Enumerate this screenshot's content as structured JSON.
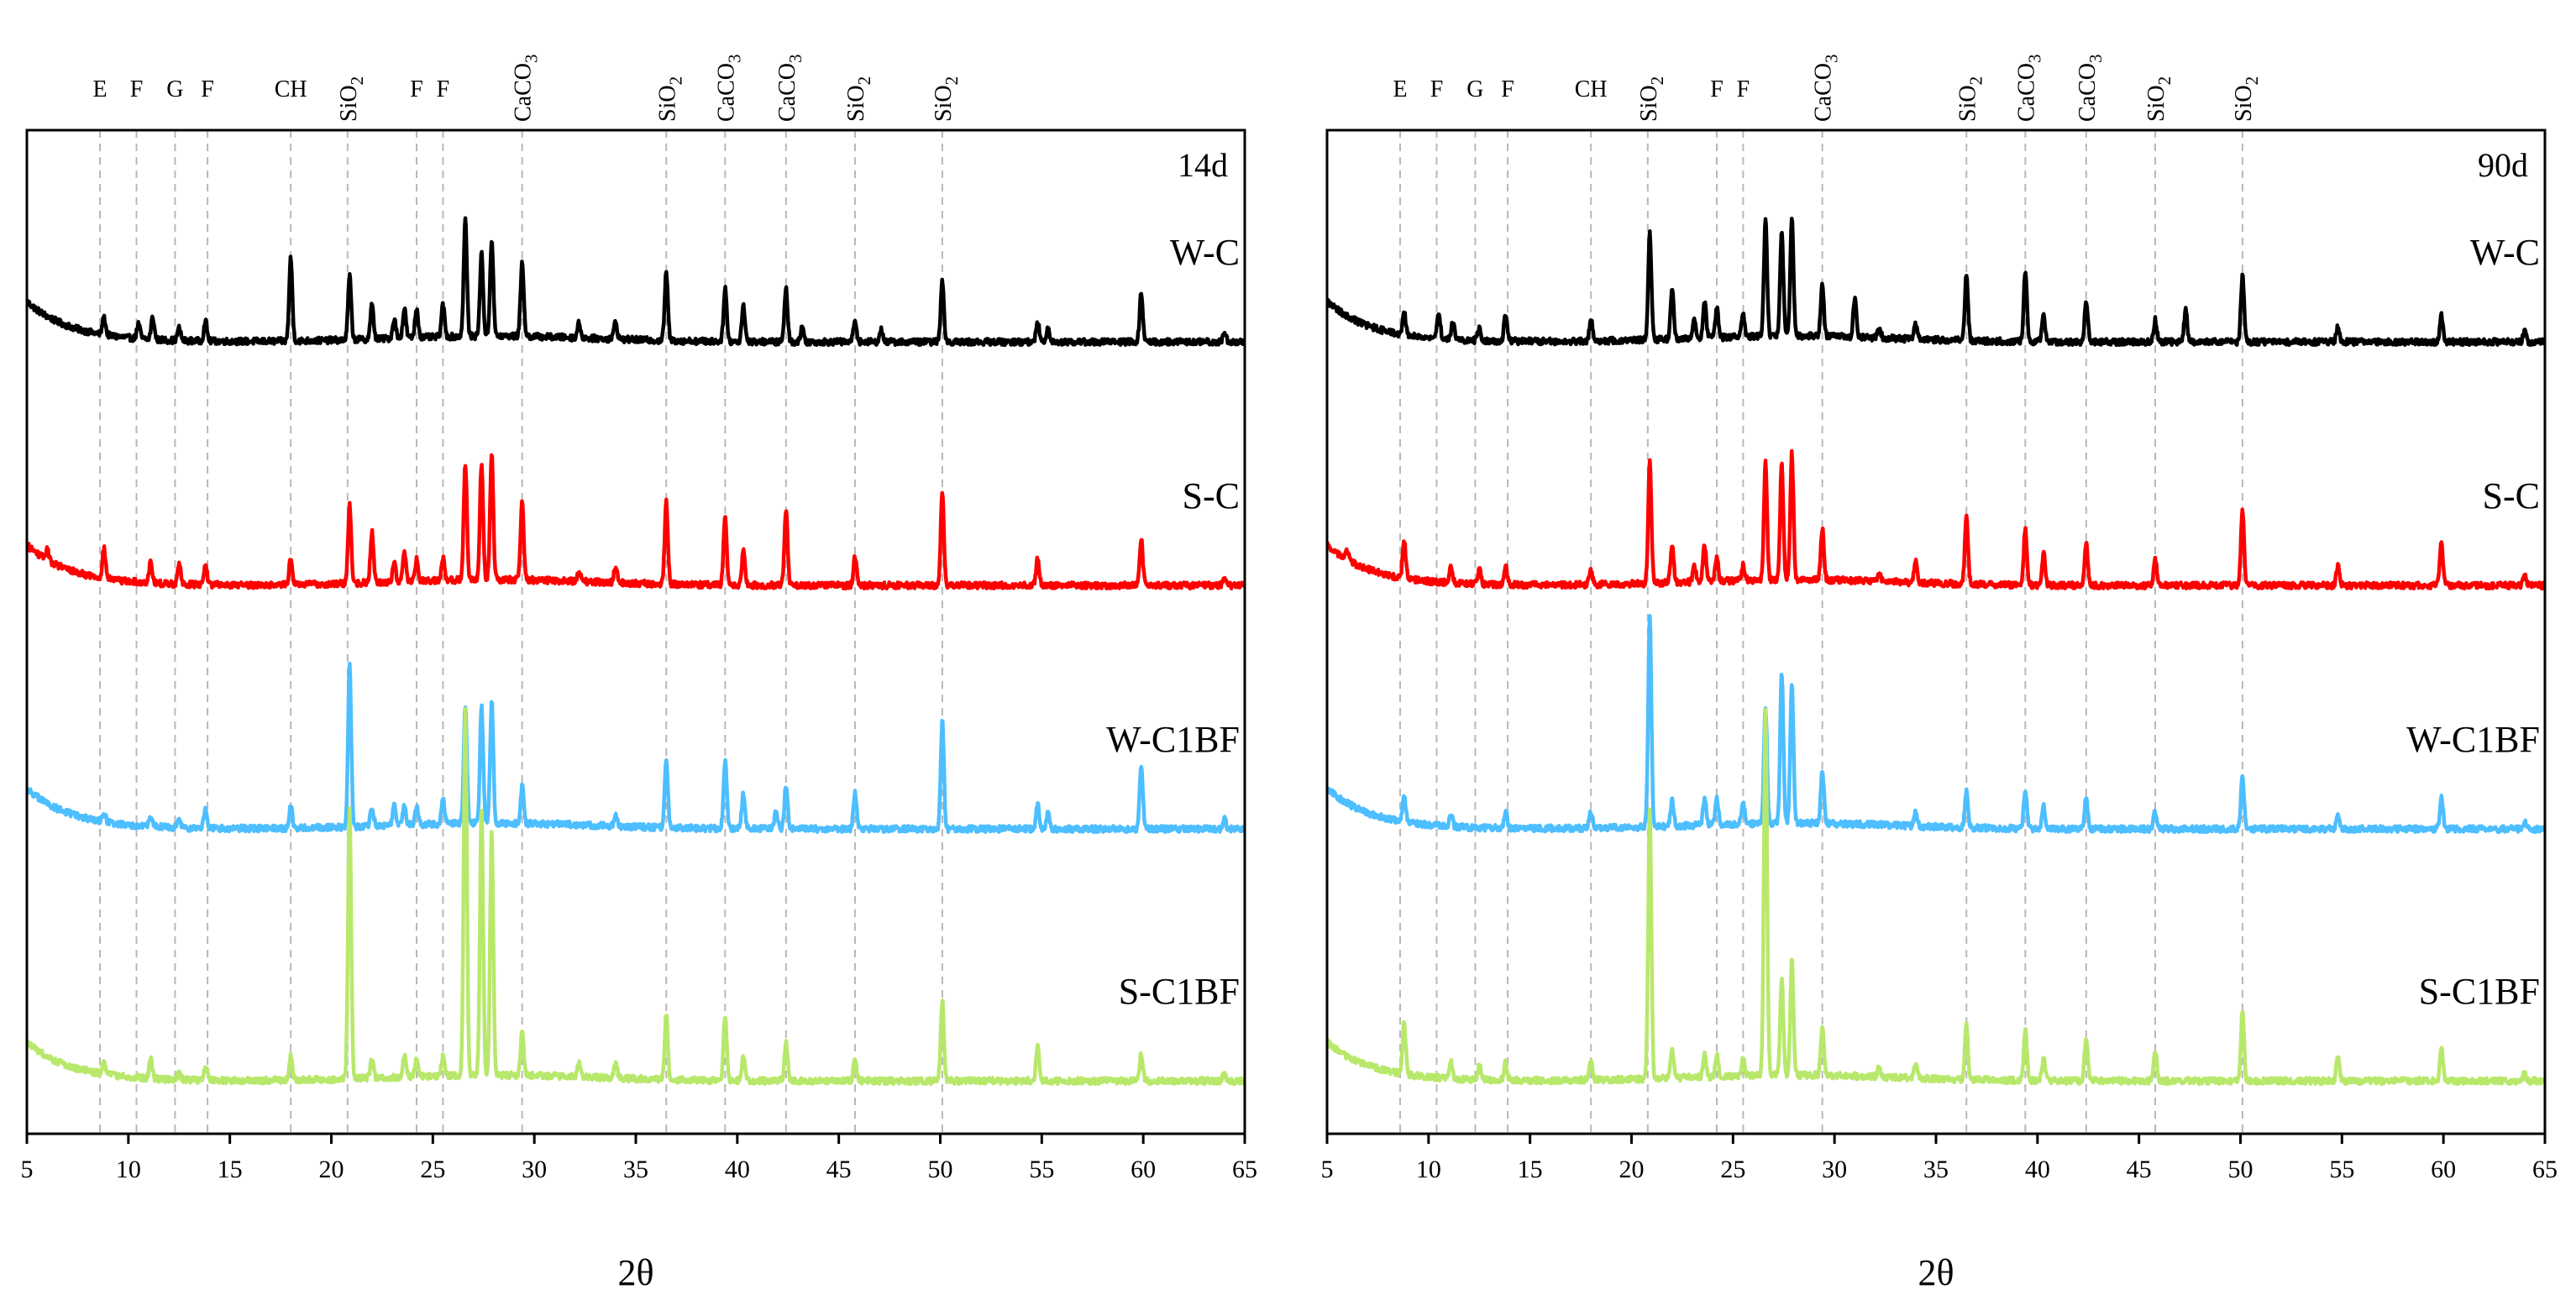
{
  "chart_data": [
    {
      "type": "line",
      "panel_label": "14d",
      "xlabel": "2θ",
      "xlim": [
        5,
        65
      ],
      "xticks": [
        5,
        10,
        15,
        20,
        25,
        30,
        35,
        40,
        45,
        50,
        55,
        60,
        65
      ],
      "phase_markers": [
        {
          "label": "E",
          "x": 8.6
        },
        {
          "label": "F",
          "x": 10.4
        },
        {
          "label": "G",
          "x": 12.3
        },
        {
          "label": "F",
          "x": 13.9
        },
        {
          "label": "CH",
          "x": 18.0
        },
        {
          "label": "SiO",
          "sub": "2",
          "x": 20.8
        },
        {
          "label": "F",
          "x": 24.2
        },
        {
          "label": "F",
          "x": 25.5
        },
        {
          "label": "CaCO",
          "sub": "3",
          "x": 29.4
        },
        {
          "label": "SiO",
          "sub": "2",
          "x": 36.5
        },
        {
          "label": "CaCO",
          "sub": "3",
          "x": 39.4
        },
        {
          "label": "CaCO",
          "sub": "3",
          "x": 42.4
        },
        {
          "label": "SiO",
          "sub": "2",
          "x": 45.8
        },
        {
          "label": "SiO",
          "sub": "2",
          "x": 50.1
        }
      ],
      "series": [
        {
          "name": "W-C",
          "color": "#000000",
          "offset": 3,
          "base": 0.92,
          "peaks": [
            [
              8.8,
              0.35
            ],
            [
              10.5,
              0.3
            ],
            [
              11.2,
              0.45
            ],
            [
              12.5,
              0.25
            ],
            [
              13.8,
              0.4
            ],
            [
              18.0,
              1.7
            ],
            [
              20.9,
              1.3
            ],
            [
              22.0,
              0.7
            ],
            [
              23.1,
              0.4
            ],
            [
              23.6,
              0.6
            ],
            [
              24.2,
              0.6
            ],
            [
              25.5,
              0.65
            ],
            [
              26.6,
              2.4
            ],
            [
              27.4,
              1.7
            ],
            [
              27.9,
              2.0
            ],
            [
              29.4,
              1.55
            ],
            [
              32.2,
              0.3
            ],
            [
              34.0,
              0.35
            ],
            [
              36.5,
              1.4
            ],
            [
              39.4,
              1.1
            ],
            [
              40.3,
              0.75
            ],
            [
              42.4,
              1.1
            ],
            [
              43.2,
              0.3
            ],
            [
              45.8,
              0.45
            ],
            [
              47.1,
              0.25
            ],
            [
              50.1,
              1.25
            ],
            [
              54.8,
              0.4
            ],
            [
              55.3,
              0.3
            ],
            [
              59.9,
              1.0
            ],
            [
              64.0,
              0.2
            ]
          ]
        },
        {
          "name": "S-C",
          "color": "#ff0000",
          "offset": 2,
          "base": 0.92,
          "peaks": [
            [
              6.0,
              0.2
            ],
            [
              8.8,
              0.6
            ],
            [
              11.1,
              0.45
            ],
            [
              12.5,
              0.4
            ],
            [
              13.8,
              0.4
            ],
            [
              18.0,
              0.55
            ],
            [
              20.9,
              1.6
            ],
            [
              22.0,
              1.05
            ],
            [
              23.1,
              0.4
            ],
            [
              23.6,
              0.6
            ],
            [
              24.2,
              0.45
            ],
            [
              25.5,
              0.45
            ],
            [
              26.6,
              2.4
            ],
            [
              27.4,
              2.4
            ],
            [
              27.9,
              2.6
            ],
            [
              29.4,
              1.6
            ],
            [
              32.2,
              0.2
            ],
            [
              34.0,
              0.3
            ],
            [
              36.5,
              1.7
            ],
            [
              39.4,
              1.45
            ],
            [
              40.3,
              0.7
            ],
            [
              42.4,
              1.55
            ],
            [
              45.8,
              0.6
            ],
            [
              50.1,
              1.9
            ],
            [
              54.8,
              0.55
            ],
            [
              59.9,
              0.95
            ],
            [
              64.0,
              0.2
            ]
          ]
        },
        {
          "name": "W-C1BF",
          "color": "#4dbeff",
          "offset": 1,
          "base": 0.92,
          "peaks": [
            [
              8.8,
              0.2
            ],
            [
              11.1,
              0.2
            ],
            [
              12.5,
              0.15
            ],
            [
              13.8,
              0.4
            ],
            [
              18.0,
              0.45
            ],
            [
              20.9,
              3.3
            ],
            [
              22.0,
              0.4
            ],
            [
              23.1,
              0.4
            ],
            [
              23.6,
              0.4
            ],
            [
              24.2,
              0.35
            ],
            [
              25.5,
              0.5
            ],
            [
              26.6,
              2.4
            ],
            [
              27.4,
              2.4
            ],
            [
              27.9,
              2.5
            ],
            [
              29.4,
              0.75
            ],
            [
              34.0,
              0.2
            ],
            [
              36.5,
              1.45
            ],
            [
              39.4,
              1.4
            ],
            [
              40.3,
              0.75
            ],
            [
              41.9,
              0.35
            ],
            [
              42.4,
              0.9
            ],
            [
              45.8,
              0.75
            ],
            [
              50.1,
              2.25
            ],
            [
              54.8,
              0.5
            ],
            [
              55.3,
              0.3
            ],
            [
              59.9,
              1.3
            ],
            [
              64.0,
              0.2
            ]
          ]
        },
        {
          "name": "S-C1BF",
          "color": "#b8e86b",
          "offset": 0,
          "base": 0.88,
          "peaks": [
            [
              8.8,
              0.3
            ],
            [
              11.1,
              0.4
            ],
            [
              12.5,
              0.15
            ],
            [
              13.8,
              0.3
            ],
            [
              18.0,
              0.5
            ],
            [
              20.9,
              5.5
            ],
            [
              22.0,
              0.4
            ],
            [
              23.6,
              0.45
            ],
            [
              24.2,
              0.35
            ],
            [
              25.5,
              0.4
            ],
            [
              26.6,
              7.5
            ],
            [
              27.4,
              5.5
            ],
            [
              27.9,
              5.0
            ],
            [
              29.4,
              0.95
            ],
            [
              32.2,
              0.3
            ],
            [
              34.0,
              0.35
            ],
            [
              36.5,
              1.35
            ],
            [
              39.4,
              1.35
            ],
            [
              40.3,
              0.5
            ],
            [
              42.4,
              0.8
            ],
            [
              45.8,
              0.45
            ],
            [
              50.1,
              1.65
            ],
            [
              54.8,
              0.75
            ],
            [
              59.9,
              0.55
            ],
            [
              64.0,
              0.15
            ]
          ]
        }
      ]
    },
    {
      "type": "line",
      "panel_label": "90d",
      "xlabel": "2θ",
      "xlim": [
        5,
        65
      ],
      "xticks": [
        5,
        10,
        15,
        20,
        25,
        30,
        35,
        40,
        45,
        50,
        55,
        60,
        65
      ],
      "phase_markers": [
        {
          "label": "E",
          "x": 8.6
        },
        {
          "label": "F",
          "x": 10.4
        },
        {
          "label": "G",
          "x": 12.3
        },
        {
          "label": "F",
          "x": 13.9
        },
        {
          "label": "CH",
          "x": 18.0
        },
        {
          "label": "SiO",
          "sub": "2",
          "x": 20.8
        },
        {
          "label": "F",
          "x": 24.2
        },
        {
          "label": "F",
          "x": 25.5
        },
        {
          "label": "CaCO",
          "sub": "3",
          "x": 29.4
        },
        {
          "label": "SiO",
          "sub": "2",
          "x": 36.5
        },
        {
          "label": "CaCO",
          "sub": "3",
          "x": 39.4
        },
        {
          "label": "CaCO",
          "sub": "3",
          "x": 42.4
        },
        {
          "label": "SiO",
          "sub": "2",
          "x": 45.8
        },
        {
          "label": "SiO",
          "sub": "2",
          "x": 50.1
        }
      ],
      "series": [
        {
          "name": "W-C",
          "color": "#000000",
          "offset": 3,
          "base": 0.92,
          "peaks": [
            [
              8.8,
              0.45
            ],
            [
              10.5,
              0.55
            ],
            [
              11.2,
              0.35
            ],
            [
              12.5,
              0.25
            ],
            [
              13.8,
              0.55
            ],
            [
              18.0,
              0.45
            ],
            [
              20.9,
              2.2
            ],
            [
              22.0,
              1.05
            ],
            [
              23.1,
              0.4
            ],
            [
              23.6,
              0.75
            ],
            [
              24.2,
              0.6
            ],
            [
              25.5,
              0.45
            ],
            [
              26.6,
              2.4
            ],
            [
              27.4,
              2.2
            ],
            [
              27.9,
              2.4
            ],
            [
              29.4,
              1.05
            ],
            [
              31.0,
              0.8
            ],
            [
              32.2,
              0.2
            ],
            [
              34.0,
              0.3
            ],
            [
              36.5,
              1.35
            ],
            [
              39.4,
              1.45
            ],
            [
              40.3,
              0.55
            ],
            [
              42.4,
              0.85
            ],
            [
              45.8,
              0.45
            ],
            [
              47.3,
              0.65
            ],
            [
              50.1,
              1.35
            ],
            [
              54.8,
              0.3
            ],
            [
              59.9,
              0.55
            ],
            [
              64.0,
              0.2
            ]
          ]
        },
        {
          "name": "S-C",
          "color": "#ff0000",
          "offset": 2,
          "base": 0.92,
          "peaks": [
            [
              6.0,
              0.2
            ],
            [
              8.8,
              0.75
            ],
            [
              11.1,
              0.35
            ],
            [
              12.5,
              0.3
            ],
            [
              13.8,
              0.35
            ],
            [
              18.0,
              0.3
            ],
            [
              20.9,
              2.5
            ],
            [
              22.0,
              0.75
            ],
            [
              23.1,
              0.3
            ],
            [
              23.6,
              0.75
            ],
            [
              24.2,
              0.45
            ],
            [
              25.5,
              0.3
            ],
            [
              26.6,
              2.4
            ],
            [
              27.4,
              2.4
            ],
            [
              27.9,
              2.6
            ],
            [
              29.4,
              1.05
            ],
            [
              32.2,
              0.2
            ],
            [
              34.0,
              0.45
            ],
            [
              36.5,
              1.4
            ],
            [
              39.4,
              1.15
            ],
            [
              40.3,
              0.65
            ],
            [
              42.4,
              0.85
            ],
            [
              45.8,
              0.55
            ],
            [
              50.1,
              1.55
            ],
            [
              54.8,
              0.4
            ],
            [
              59.9,
              0.85
            ],
            [
              64.0,
              0.2
            ]
          ]
        },
        {
          "name": "W-C1BF",
          "color": "#4dbeff",
          "offset": 1,
          "base": 0.92,
          "peaks": [
            [
              8.8,
              0.5
            ],
            [
              11.1,
              0.25
            ],
            [
              13.8,
              0.35
            ],
            [
              18.0,
              0.35
            ],
            [
              20.9,
              4.3
            ],
            [
              22.0,
              0.55
            ],
            [
              23.6,
              0.55
            ],
            [
              24.2,
              0.55
            ],
            [
              25.5,
              0.45
            ],
            [
              26.6,
              2.4
            ],
            [
              27.4,
              3.1
            ],
            [
              27.9,
              2.9
            ],
            [
              29.4,
              1.1
            ],
            [
              34.0,
              0.3
            ],
            [
              36.5,
              0.75
            ],
            [
              39.4,
              0.8
            ],
            [
              40.3,
              0.45
            ],
            [
              42.4,
              0.65
            ],
            [
              45.8,
              0.35
            ],
            [
              50.1,
              1.1
            ],
            [
              54.8,
              0.3
            ],
            [
              59.9,
              0.65
            ],
            [
              64.0,
              0.15
            ]
          ]
        },
        {
          "name": "S-C1BF",
          "color": "#b8e86b",
          "offset": 0,
          "base": 0.88,
          "peaks": [
            [
              8.8,
              1.05
            ],
            [
              11.1,
              0.35
            ],
            [
              12.5,
              0.3
            ],
            [
              13.8,
              0.35
            ],
            [
              18.0,
              0.35
            ],
            [
              20.9,
              5.5
            ],
            [
              22.0,
              0.55
            ],
            [
              23.6,
              0.45
            ],
            [
              24.2,
              0.45
            ],
            [
              25.5,
              0.35
            ],
            [
              26.6,
              7.5
            ],
            [
              27.4,
              2.0
            ],
            [
              27.9,
              2.4
            ],
            [
              29.4,
              1.0
            ],
            [
              32.2,
              0.2
            ],
            [
              34.0,
              0.3
            ],
            [
              36.5,
              1.1
            ],
            [
              39.4,
              1.05
            ],
            [
              40.3,
              0.45
            ],
            [
              42.4,
              0.9
            ],
            [
              45.8,
              0.65
            ],
            [
              50.1,
              1.45
            ],
            [
              54.8,
              0.5
            ],
            [
              59.9,
              0.65
            ],
            [
              64.0,
              0.15
            ]
          ]
        }
      ]
    }
  ]
}
